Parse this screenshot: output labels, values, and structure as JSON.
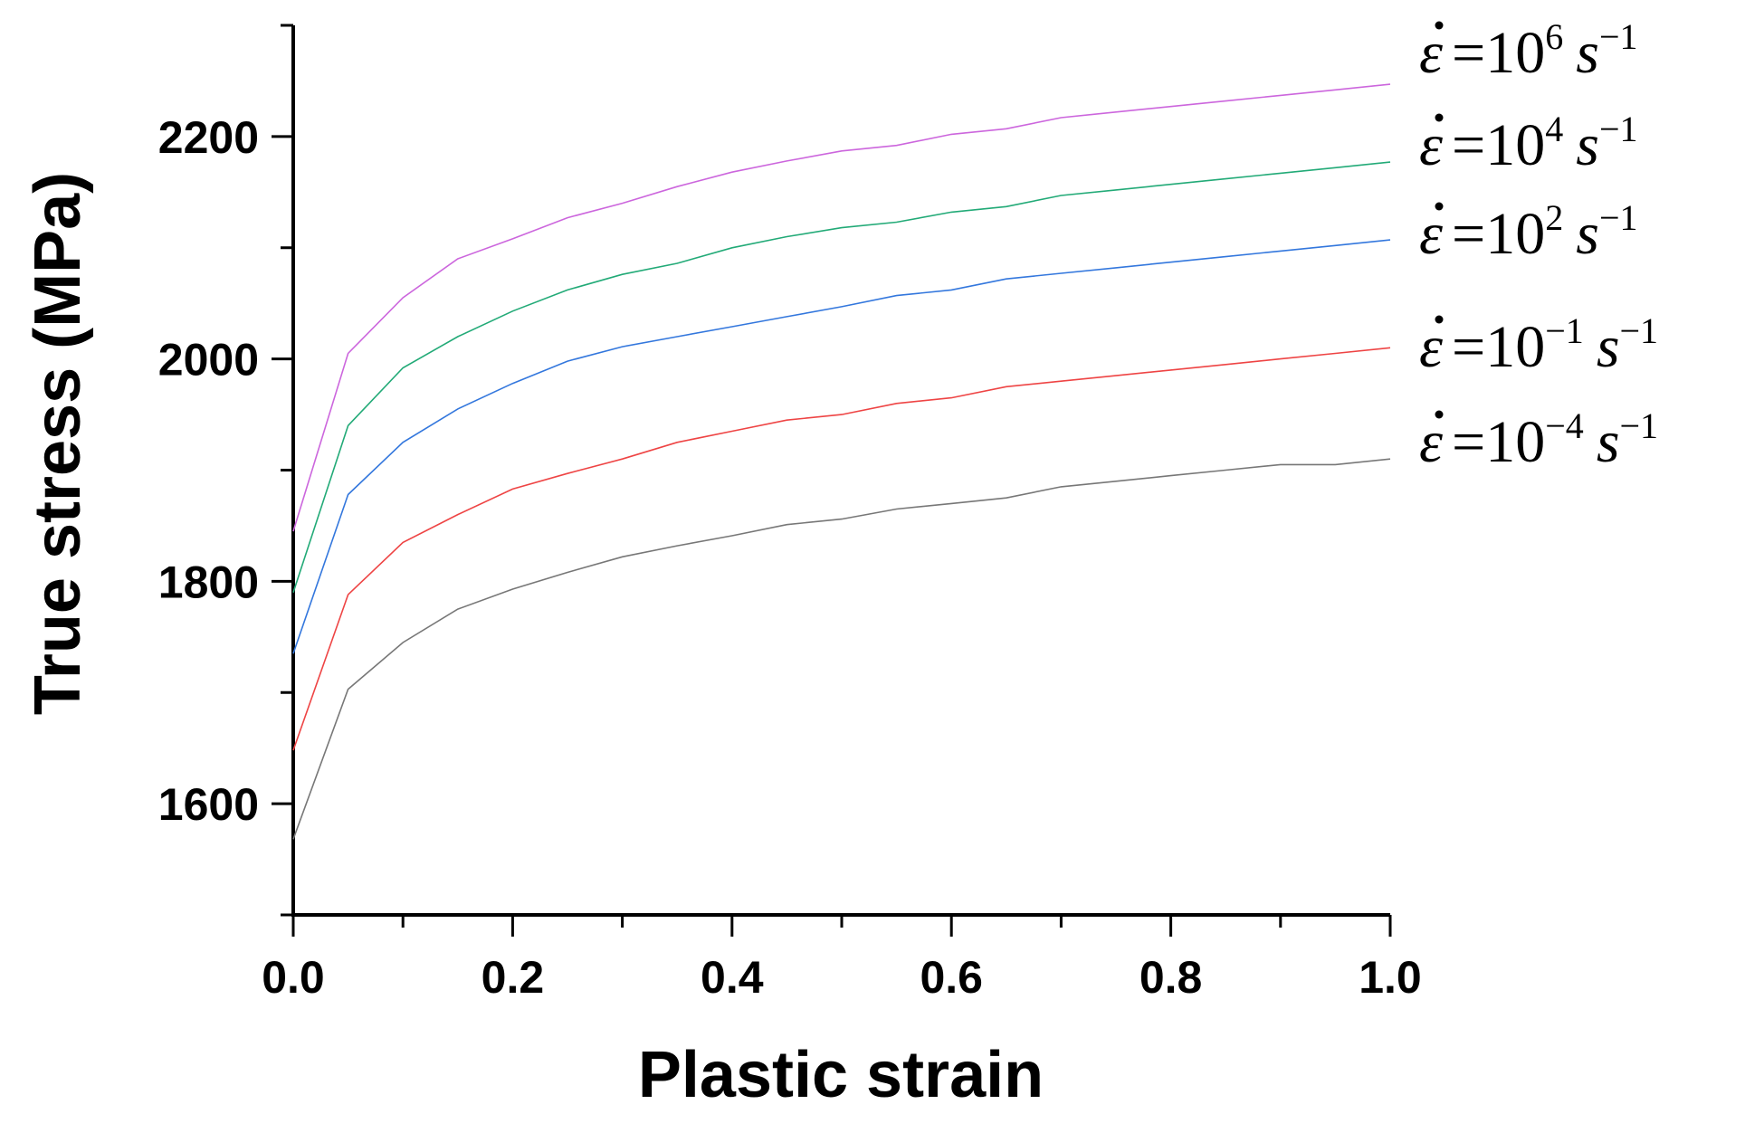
{
  "chart_data": {
    "type": "line",
    "xlabel": "Plastic strain",
    "ylabel": "True stress (MPa)",
    "xlim": [
      0.0,
      1.0
    ],
    "ylim": [
      1500,
      2300
    ],
    "x_ticks": [
      "0.0",
      "0.2",
      "0.4",
      "0.6",
      "0.8",
      "1.0"
    ],
    "y_ticks": [
      "1600",
      "1800",
      "2000",
      "2200"
    ],
    "x_minor_step": 0.1,
    "y_minor_step": 100,
    "grid": false,
    "legend_placement": "right",
    "x": [
      0.0,
      0.05,
      0.1,
      0.15,
      0.2,
      0.25,
      0.3,
      0.35,
      0.4,
      0.45,
      0.5,
      0.55,
      0.6,
      0.65,
      0.7,
      0.75,
      0.8,
      0.85,
      0.9,
      0.95,
      1.0
    ],
    "series": [
      {
        "rate_base": "10",
        "rate_exp": "6",
        "color": "#cc66dd",
        "values": [
          1845,
          2005,
          2055,
          2090,
          2108,
          2127,
          2140,
          2155,
          2168,
          2178,
          2187,
          2192,
          2202,
          2207,
          2217,
          2222,
          2227,
          2232,
          2237,
          2242,
          2247
        ]
      },
      {
        "rate_base": "10",
        "rate_exp": "4",
        "color": "#22aa77",
        "values": [
          1790,
          1940,
          1992,
          2020,
          2043,
          2062,
          2076,
          2086,
          2100,
          2110,
          2118,
          2123,
          2132,
          2137,
          2147,
          2152,
          2157,
          2162,
          2167,
          2172,
          2177
        ]
      },
      {
        "rate_base": "10",
        "rate_exp": "2",
        "color": "#3377dd",
        "values": [
          1735,
          1878,
          1925,
          1955,
          1978,
          1998,
          2011,
          2020,
          2029,
          2038,
          2047,
          2057,
          2062,
          2072,
          2077,
          2082,
          2087,
          2092,
          2097,
          2102,
          2107
        ]
      },
      {
        "rate_base": "10",
        "rate_exp": "−1",
        "color": "#ee4444",
        "values": [
          1648,
          1788,
          1835,
          1860,
          1883,
          1897,
          1910,
          1925,
          1935,
          1945,
          1950,
          1960,
          1965,
          1975,
          1980,
          1985,
          1990,
          1995,
          2000,
          2005,
          2010
        ]
      },
      {
        "rate_base": "10",
        "rate_exp": "−4",
        "color": "#777777",
        "values": [
          1568,
          1703,
          1745,
          1775,
          1793,
          1808,
          1822,
          1832,
          1841,
          1851,
          1856,
          1865,
          1870,
          1875,
          1885,
          1890,
          1895,
          1900,
          1905,
          1905,
          1910
        ]
      }
    ]
  }
}
